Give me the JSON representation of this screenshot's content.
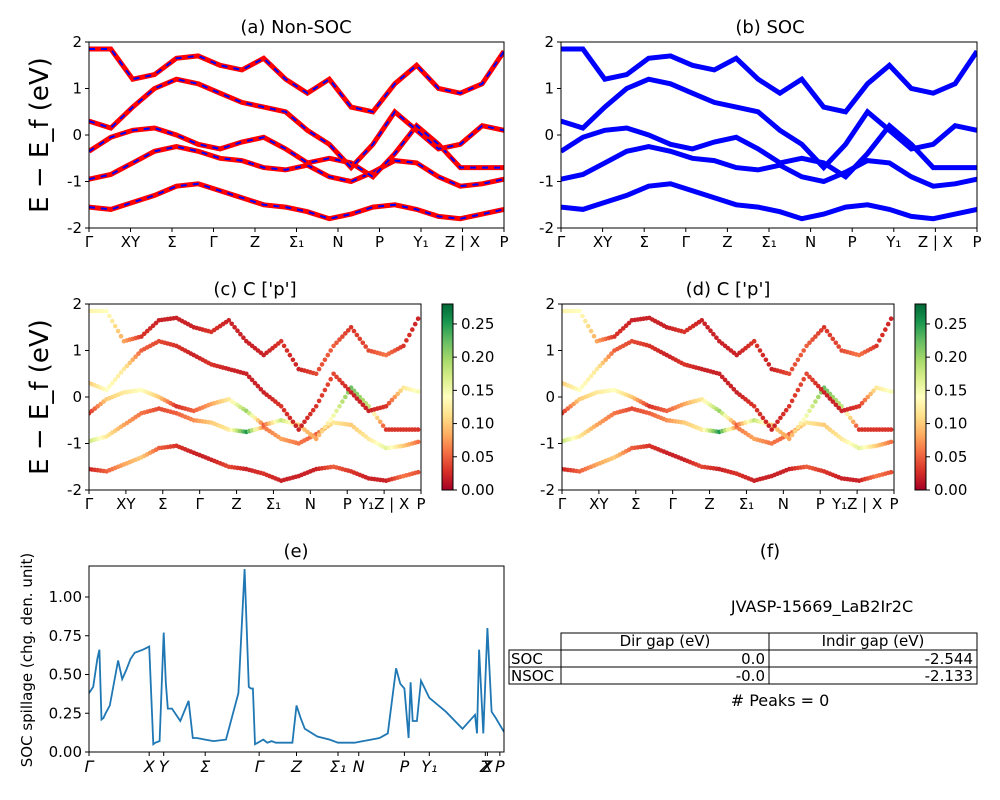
{
  "figure": {
    "ylabel_band": "E − E_f (eV)",
    "panels": {
      "a": {
        "title": "(a) Non-SOC"
      },
      "b": {
        "title": "(b) SOC"
      },
      "c": {
        "title": "(c)  C ['p']"
      },
      "d": {
        "title": "(d) C ['p']"
      },
      "e": {
        "title": "(e)",
        "ylabel": "SOC spillage (chg. den. unit)"
      },
      "f": {
        "title": "(f)"
      }
    }
  },
  "colors": {
    "nsoc_line": "#ff0000",
    "nsoc_dash": "#0000ff",
    "soc_line": "#0000ff",
    "spillage_line": "#1f77b4",
    "colormap": [
      "#a50026",
      "#d73027",
      "#f46d43",
      "#fdae61",
      "#fee08b",
      "#ffffbf",
      "#d9ef8b",
      "#a6d96a",
      "#66bd63",
      "#1a9850",
      "#006837"
    ]
  },
  "band_kpath": {
    "labels": [
      "Γ",
      "XY",
      "Σ",
      "Γ",
      "Z",
      "Σ₁",
      "N",
      "P",
      "Y₁",
      "Z | X",
      "P"
    ],
    "positions": [
      0,
      0.1,
      0.2,
      0.3,
      0.5,
      0.6,
      0.7,
      0.8,
      0.9,
      0.95,
      1.0
    ]
  },
  "table": {
    "material": "JVASP-15669_LaB2Ir2C",
    "headers": [
      "",
      "Dir gap (eV)",
      "Indir gap (eV)"
    ],
    "rows": [
      {
        "label": "SOC",
        "dir": "0.0",
        "indir": "-2.544"
      },
      {
        "label": "NSOC",
        "dir": "-0.0",
        "indir": "-2.133"
      }
    ],
    "peaks": "# Peaks = 0"
  },
  "chart_data": [
    {
      "panel": "a",
      "type": "line",
      "title": "(a) Non-SOC",
      "ylabel": "E − E_f (eV)",
      "ylim": [
        -2,
        2
      ],
      "yticks": [
        -2,
        -1,
        0,
        1,
        2
      ],
      "xticks": [
        "Γ",
        "XY",
        "Σ",
        "Γ",
        "Z",
        "Σ₁",
        "N",
        "P",
        "Y₁",
        "Z | X",
        "P"
      ],
      "series_style": "red solid with blue dashed overlay",
      "series": [
        {
          "y": [
            -1.55,
            -1.6,
            -1.45,
            -1.3,
            -1.1,
            -1.05,
            -1.2,
            -1.35,
            -1.5,
            -1.55,
            -1.65,
            -1.8,
            -1.7,
            -1.55,
            -1.5,
            -1.6,
            -1.75,
            -1.8,
            -1.7,
            -1.6
          ]
        },
        {
          "y": [
            -0.95,
            -0.85,
            -0.6,
            -0.35,
            -0.25,
            -0.35,
            -0.5,
            -0.55,
            -0.7,
            -0.75,
            -0.65,
            -0.9,
            -1.0,
            -0.8,
            -0.55,
            -0.6,
            -0.9,
            -1.1,
            -1.05,
            -0.95
          ]
        },
        {
          "y": [
            -0.35,
            -0.05,
            0.1,
            0.15,
            0.0,
            -0.2,
            -0.3,
            -0.15,
            -0.05,
            -0.3,
            -0.6,
            -0.5,
            -0.6,
            -0.9,
            -0.4,
            0.2,
            -0.2,
            -0.7,
            -0.7,
            -0.7
          ]
        },
        {
          "y": [
            0.3,
            0.15,
            0.6,
            1.0,
            1.2,
            1.1,
            0.9,
            0.7,
            0.6,
            0.5,
            0.1,
            -0.2,
            -0.7,
            -0.2,
            0.5,
            0.1,
            -0.3,
            -0.2,
            0.2,
            0.1
          ]
        },
        {
          "y": [
            1.85,
            1.85,
            1.2,
            1.3,
            1.65,
            1.7,
            1.5,
            1.4,
            1.65,
            1.2,
            0.9,
            1.2,
            0.6,
            0.5,
            1.1,
            1.5,
            1.0,
            0.9,
            1.1,
            1.8
          ]
        }
      ]
    },
    {
      "panel": "b",
      "type": "line",
      "title": "(b) SOC",
      "ylim": [
        -2,
        2
      ],
      "yticks": [
        -2,
        -1,
        0,
        1,
        2
      ],
      "xticks": [
        "Γ",
        "XY",
        "Σ",
        "Γ",
        "Z",
        "Σ₁",
        "N",
        "P",
        "Y₁",
        "Z | X",
        "P"
      ],
      "series": [
        {
          "y": [
            -1.55,
            -1.6,
            -1.45,
            -1.3,
            -1.1,
            -1.05,
            -1.2,
            -1.35,
            -1.5,
            -1.55,
            -1.65,
            -1.8,
            -1.7,
            -1.55,
            -1.5,
            -1.6,
            -1.75,
            -1.8,
            -1.7,
            -1.6
          ]
        },
        {
          "y": [
            -0.95,
            -0.85,
            -0.6,
            -0.35,
            -0.25,
            -0.35,
            -0.5,
            -0.55,
            -0.7,
            -0.75,
            -0.65,
            -0.9,
            -1.0,
            -0.8,
            -0.55,
            -0.6,
            -0.9,
            -1.1,
            -1.05,
            -0.95
          ]
        },
        {
          "y": [
            -0.35,
            -0.05,
            0.1,
            0.15,
            0.0,
            -0.2,
            -0.3,
            -0.15,
            -0.05,
            -0.3,
            -0.6,
            -0.5,
            -0.6,
            -0.9,
            -0.4,
            0.2,
            -0.2,
            -0.7,
            -0.7,
            -0.7
          ]
        },
        {
          "y": [
            0.3,
            0.15,
            0.6,
            1.0,
            1.2,
            1.1,
            0.9,
            0.7,
            0.6,
            0.5,
            0.1,
            -0.2,
            -0.7,
            -0.2,
            0.5,
            0.1,
            -0.3,
            -0.2,
            0.2,
            0.1
          ]
        },
        {
          "y": [
            1.85,
            1.85,
            1.2,
            1.3,
            1.65,
            1.7,
            1.5,
            1.4,
            1.65,
            1.2,
            0.9,
            1.2,
            0.6,
            0.5,
            1.1,
            1.5,
            1.0,
            0.9,
            1.1,
            1.8
          ]
        }
      ]
    },
    {
      "panel": "c",
      "type": "scatter",
      "title": "(c)  C ['p']",
      "ylabel": "E − E_f (eV)",
      "ylim": [
        -2,
        2
      ],
      "yticks": [
        -2,
        -1,
        0,
        1,
        2
      ],
      "xticks": [
        "Γ",
        "XY",
        "Σ",
        "Γ",
        "Z",
        "Σ₁",
        "N",
        "P",
        "Y₁Z | X",
        "P"
      ],
      "colorbar": {
        "min": 0.0,
        "max": 0.28,
        "ticks": [
          "0.00",
          "0.05",
          "0.10",
          "0.15",
          "0.20",
          "0.25"
        ]
      },
      "points_from_bands": true,
      "weights": [
        [
          0.02,
          0.05,
          0.08,
          0.1,
          0.05,
          0.03,
          0.02,
          0.02,
          0.04,
          0.02,
          0.03,
          0.02,
          0.02,
          0.02,
          0.05,
          0.03,
          0.02,
          0.02,
          0.06,
          0.04
        ],
        [
          0.18,
          0.12,
          0.08,
          0.06,
          0.04,
          0.05,
          0.07,
          0.1,
          0.12,
          0.25,
          0.06,
          0.08,
          0.06,
          0.05,
          0.12,
          0.1,
          0.12,
          0.16,
          0.1,
          0.05
        ],
        [
          0.03,
          0.1,
          0.12,
          0.14,
          0.1,
          0.03,
          0.05,
          0.08,
          0.12,
          0.2,
          0.05,
          0.18,
          0.1,
          0.08,
          0.15,
          0.22,
          0.18,
          0.03,
          0.03,
          0.03
        ],
        [
          0.1,
          0.14,
          0.12,
          0.05,
          0.04,
          0.03,
          0.02,
          0.03,
          0.02,
          0.02,
          0.02,
          0.03,
          0.02,
          0.03,
          0.04,
          0.02,
          0.02,
          0.03,
          0.12,
          0.15
        ],
        [
          0.13,
          0.14,
          0.08,
          0.03,
          0.02,
          0.02,
          0.02,
          0.03,
          0.02,
          0.02,
          0.02,
          0.03,
          0.02,
          0.04,
          0.05,
          0.03,
          0.04,
          0.06,
          0.03,
          0.02
        ]
      ]
    },
    {
      "panel": "d",
      "type": "scatter",
      "title": "(d) C ['p']",
      "ylim": [
        -2,
        2
      ],
      "yticks": [
        -2,
        -1,
        0,
        1,
        2
      ],
      "xticks": [
        "Γ",
        "XY",
        "Σ",
        "Γ",
        "Z",
        "Σ₁",
        "N",
        "P",
        "Y₁Z | X",
        "P"
      ],
      "colorbar": {
        "min": 0.0,
        "max": 0.28,
        "ticks": [
          "0.00",
          "0.05",
          "0.10",
          "0.15",
          "0.20",
          "0.25"
        ]
      },
      "points_from_bands": true
    },
    {
      "panel": "e",
      "type": "line",
      "title": "(e)",
      "ylabel": "SOC spillage (chg. den. unit)",
      "ylim": [
        0,
        1.2
      ],
      "yticks": [
        "0.00",
        "0.25",
        "0.50",
        "0.75",
        "1.00"
      ],
      "xticks": [
        "Γ",
        "X",
        "Y",
        "Σ",
        "Γ",
        "Z",
        "Σ₁",
        "N",
        "P",
        "Y₁",
        "Z",
        "X",
        "P"
      ],
      "x": [
        0,
        0.01,
        0.02,
        0.025,
        0.03,
        0.035,
        0.04,
        0.05,
        0.07,
        0.08,
        0.09,
        0.1,
        0.11,
        0.13,
        0.145,
        0.155,
        0.16,
        0.17,
        0.18,
        0.185,
        0.19,
        0.2,
        0.22,
        0.24,
        0.25,
        0.26,
        0.28,
        0.3,
        0.33,
        0.36,
        0.375,
        0.385,
        0.39,
        0.395,
        0.4,
        0.42,
        0.43,
        0.44,
        0.45,
        0.49,
        0.5,
        0.51,
        0.52,
        0.55,
        0.58,
        0.6,
        0.62,
        0.64,
        0.66,
        0.68,
        0.7,
        0.72,
        0.74,
        0.75,
        0.76,
        0.77,
        0.775,
        0.78,
        0.79,
        0.8,
        0.82,
        0.86,
        0.9,
        0.93,
        0.935,
        0.94,
        0.95,
        0.96,
        0.97,
        0.98,
        1.0
      ],
      "y": [
        0.38,
        0.42,
        0.6,
        0.66,
        0.21,
        0.22,
        0.25,
        0.3,
        0.59,
        0.47,
        0.53,
        0.6,
        0.64,
        0.66,
        0.68,
        0.05,
        0.06,
        0.07,
        0.77,
        0.45,
        0.28,
        0.28,
        0.2,
        0.33,
        0.09,
        0.09,
        0.08,
        0.07,
        0.08,
        0.38,
        1.18,
        0.42,
        0.41,
        0.41,
        0.05,
        0.08,
        0.06,
        0.07,
        0.06,
        0.06,
        0.3,
        0.22,
        0.15,
        0.1,
        0.08,
        0.06,
        0.06,
        0.06,
        0.07,
        0.08,
        0.09,
        0.12,
        0.54,
        0.44,
        0.41,
        0.09,
        0.45,
        0.2,
        0.2,
        0.46,
        0.35,
        0.26,
        0.15,
        0.24,
        0.12,
        0.66,
        0.12,
        0.8,
        0.26,
        0.22,
        0.13
      ]
    }
  ]
}
